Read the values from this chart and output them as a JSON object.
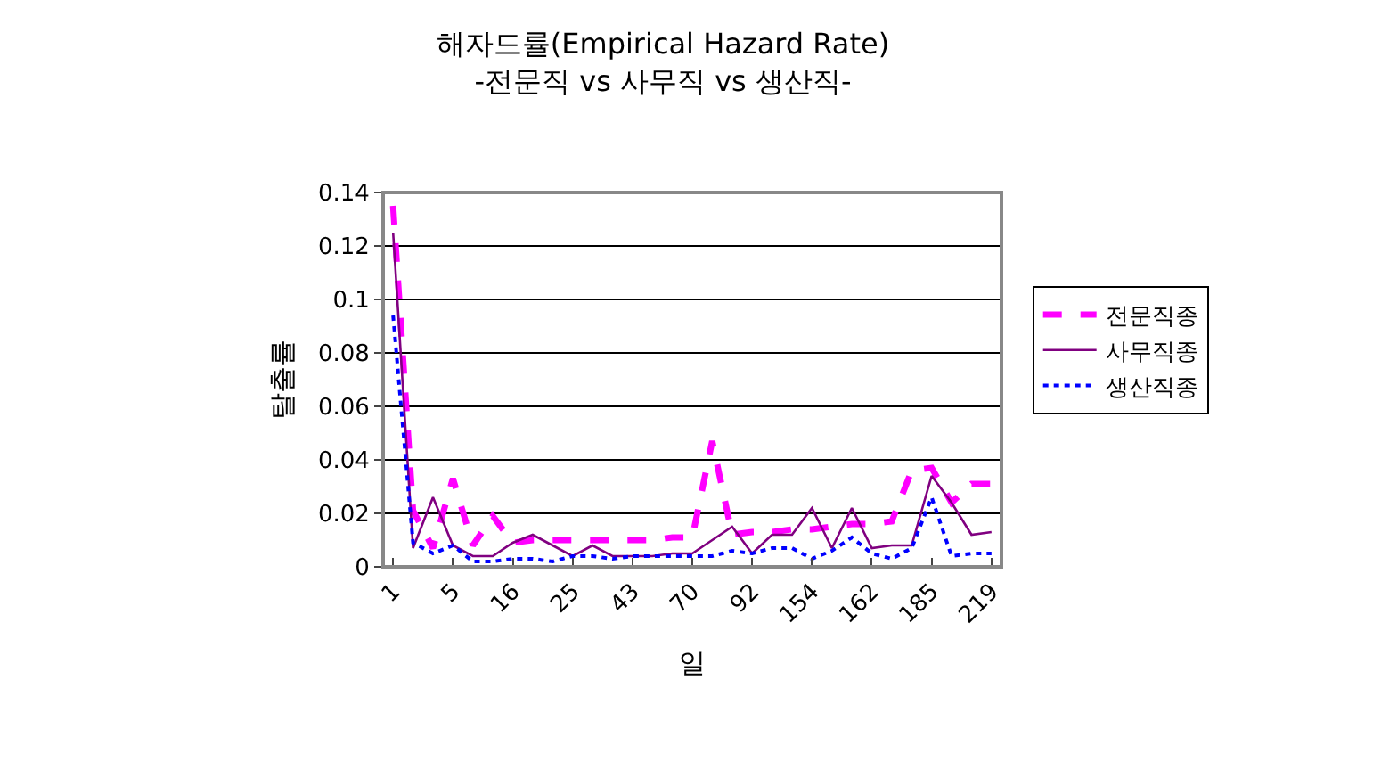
{
  "chart_data": {
    "type": "line",
    "title": "해자드률(Empirical Hazard Rate)\n-전문직 vs 사무직 vs 생산직-",
    "xlabel": "일",
    "ylabel": "탈출률",
    "categories": [
      "1",
      null,
      null,
      "5",
      null,
      null,
      "16",
      null,
      null,
      "25",
      null,
      null,
      "43",
      null,
      null,
      "70",
      null,
      null,
      "92",
      null,
      null,
      "154",
      null,
      null,
      "162",
      null,
      null,
      "185",
      null,
      null,
      "219"
    ],
    "series": [
      {
        "name": "전문직종",
        "color": "#ff00ff",
        "line_style": "dashed",
        "values": [
          0.135,
          0.021,
          0.007,
          0.033,
          0.008,
          0.019,
          0.009,
          0.01,
          0.01,
          0.01,
          0.01,
          0.01,
          0.01,
          0.01,
          0.011,
          0.011,
          0.047,
          0.012,
          0.013,
          0.013,
          0.014,
          0.014,
          0.015,
          0.016,
          0.016,
          0.017,
          0.036,
          0.037,
          0.024,
          0.031,
          0.031
        ]
      },
      {
        "name": "사무직종",
        "color": "#800080",
        "line_style": "solid",
        "values": [
          0.125,
          0.007,
          0.026,
          0.008,
          0.004,
          0.004,
          0.009,
          0.012,
          0.008,
          0.004,
          0.008,
          0.004,
          0.004,
          0.004,
          0.005,
          0.005,
          0.01,
          0.015,
          0.005,
          0.012,
          0.012,
          0.022,
          0.007,
          0.022,
          0.007,
          0.008,
          0.008,
          0.034,
          0.024,
          0.012,
          0.013
        ]
      },
      {
        "name": "생산직종",
        "color": "#0000ff",
        "line_style": "dotted",
        "values": [
          0.094,
          0.009,
          0.005,
          0.008,
          0.002,
          0.002,
          0.003,
          0.003,
          0.002,
          0.004,
          0.004,
          0.003,
          0.004,
          0.004,
          0.004,
          0.004,
          0.004,
          0.006,
          0.005,
          0.007,
          0.007,
          0.003,
          0.006,
          0.011,
          0.005,
          0.003,
          0.007,
          0.026,
          0.004,
          0.005,
          0.005
        ]
      }
    ],
    "ylim": [
      0,
      0.14
    ],
    "yticks": [
      0,
      0.02,
      0.04,
      0.06,
      0.08,
      0.1,
      0.12,
      0.14
    ],
    "grid": "y",
    "legend": "right",
    "marker": "none"
  }
}
